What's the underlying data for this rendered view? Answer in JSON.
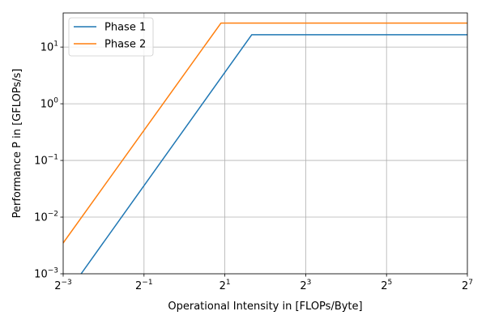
{
  "chart_data": {
    "type": "line",
    "xscale": "log2",
    "yscale": "log10",
    "xlabel": "Operational Intensity in [FLOPs/Byte]",
    "ylabel": "Performance P in [GFLOPs/s]",
    "xlim": [
      0.125,
      128
    ],
    "ylim": [
      0.001,
      40
    ],
    "grid": true,
    "legend_position": "upper-left",
    "x_ticks": [
      {
        "value": 0.125,
        "base": "2",
        "exp": "−3"
      },
      {
        "value": 0.5,
        "base": "2",
        "exp": "−1"
      },
      {
        "value": 2,
        "base": "2",
        "exp": "1"
      },
      {
        "value": 8,
        "base": "2",
        "exp": "3"
      },
      {
        "value": 32,
        "base": "2",
        "exp": "5"
      },
      {
        "value": 128,
        "base": "2",
        "exp": "7"
      }
    ],
    "y_ticks": [
      {
        "value": 0.001,
        "base": "10",
        "exp": "−3"
      },
      {
        "value": 0.01,
        "base": "10",
        "exp": "−2"
      },
      {
        "value": 0.1,
        "base": "10",
        "exp": "−1"
      },
      {
        "value": 1,
        "base": "10",
        "exp": "0"
      },
      {
        "value": 10,
        "base": "10",
        "exp": "1"
      }
    ],
    "series": [
      {
        "name": "Phase 1",
        "color": "#1f77b4",
        "x": [
          0.17,
          3.17,
          128
        ],
        "y": [
          0.001,
          16.5,
          16.5
        ]
      },
      {
        "name": "Phase 2",
        "color": "#ff7f0e",
        "x": [
          0.125,
          1.87,
          128
        ],
        "y": [
          0.0035,
          26.5,
          26.5
        ]
      }
    ]
  }
}
